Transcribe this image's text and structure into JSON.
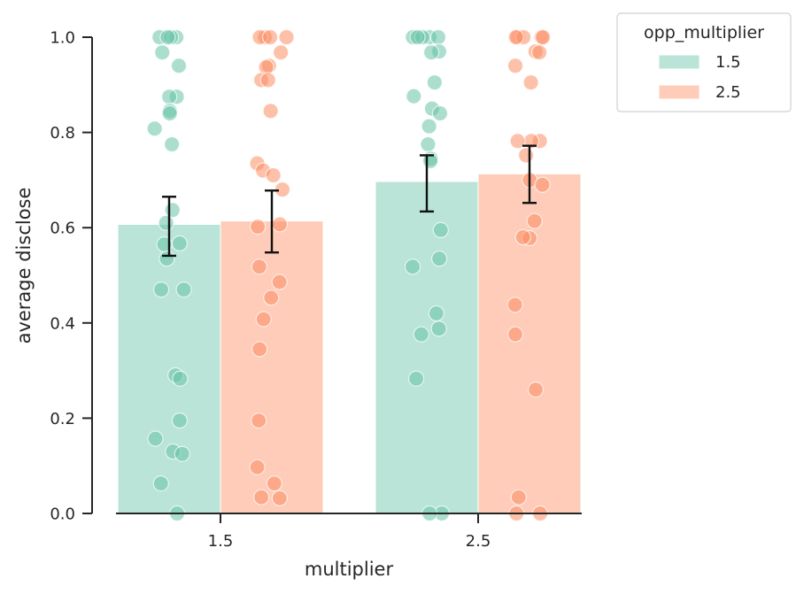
{
  "chart_data": {
    "type": "bar",
    "xlabel": "multiplier",
    "ylabel": "average disclose",
    "categories": [
      "1.5",
      "2.5"
    ],
    "ylim": [
      0,
      1.0
    ],
    "yticks": [
      "0.0",
      "0.2",
      "0.4",
      "0.6",
      "0.8",
      "1.0"
    ],
    "legend": {
      "title": "opp_multiplier",
      "position": "outside-top-right"
    },
    "series": [
      {
        "name": "1.5",
        "color": "#66c2a5",
        "values": [
          0.607,
          0.697
        ],
        "ci": [
          [
            0.541,
            0.665
          ],
          [
            0.634,
            0.752
          ]
        ],
        "points": [
          [
            1.0,
            1.0,
            1.0,
            1.0,
            0.968,
            0.94,
            0.875,
            0.875,
            0.845,
            0.84,
            0.808,
            0.775,
            0.637,
            0.61,
            0.567,
            0.565,
            0.535,
            0.47,
            0.47,
            0.29,
            0.283,
            0.195,
            0.157,
            0.13,
            0.125,
            0.063,
            0.0
          ],
          [
            1.0,
            1.0,
            1.0,
            1.0,
            1.0,
            0.97,
            0.968,
            0.905,
            0.876,
            0.85,
            0.84,
            0.813,
            0.775,
            0.745,
            0.74,
            0.595,
            0.535,
            0.518,
            0.42,
            0.388,
            0.376,
            0.283,
            0.0,
            0.0
          ]
        ]
      },
      {
        "name": "2.5",
        "color": "#fc8d62",
        "values": [
          0.614,
          0.713
        ],
        "ci": [
          [
            0.548,
            0.678
          ],
          [
            0.652,
            0.772
          ]
        ],
        "points": [
          [
            1.0,
            1.0,
            1.0,
            1.0,
            0.968,
            0.94,
            0.937,
            0.91,
            0.91,
            0.845,
            0.735,
            0.72,
            0.71,
            0.68,
            0.607,
            0.602,
            0.518,
            0.486,
            0.453,
            0.408,
            0.345,
            0.195,
            0.097,
            0.063,
            0.034,
            0.032
          ],
          [
            1.0,
            1.0,
            1.0,
            1.0,
            1.0,
            0.97,
            0.968,
            0.94,
            0.905,
            0.782,
            0.782,
            0.782,
            0.752,
            0.7,
            0.69,
            0.614,
            0.578,
            0.58,
            0.438,
            0.376,
            0.26,
            0.034,
            0.0,
            0.0
          ]
        ]
      }
    ]
  }
}
